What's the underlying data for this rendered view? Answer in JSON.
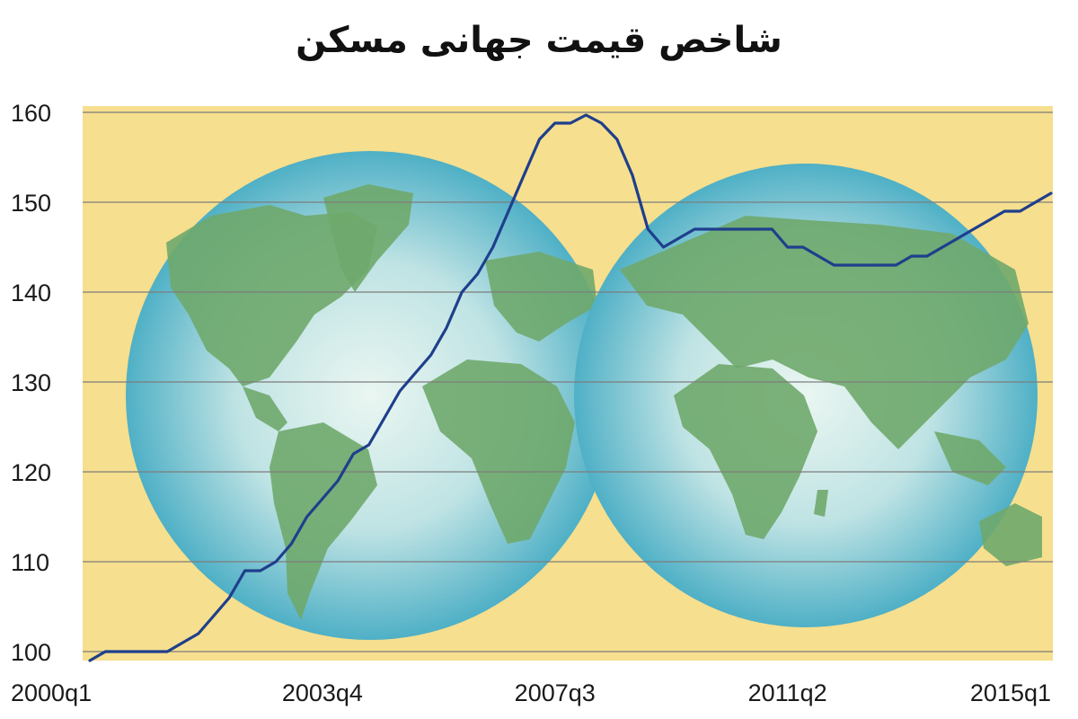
{
  "chart_data": {
    "type": "line",
    "title": "شاخص قیمت جهانی مسکن",
    "xlabel": "",
    "ylabel": "",
    "x_tick_labels": [
      "2000q1",
      "2003q4",
      "2007q3",
      "2011q2",
      "2015q1"
    ],
    "y_ticks": [
      100,
      110,
      120,
      130,
      140,
      150,
      160
    ],
    "ylim": [
      100,
      160
    ],
    "grid": true,
    "legend": "none",
    "x": [
      "2000q1",
      "2000q2",
      "2000q3",
      "2000q4",
      "2001q1",
      "2001q2",
      "2001q3",
      "2001q4",
      "2002q1",
      "2002q2",
      "2002q3",
      "2002q4",
      "2003q1",
      "2003q2",
      "2003q3",
      "2003q4",
      "2004q1",
      "2004q2",
      "2004q3",
      "2004q4",
      "2005q1",
      "2005q2",
      "2005q3",
      "2005q4",
      "2006q1",
      "2006q2",
      "2006q3",
      "2006q4",
      "2007q1",
      "2007q2",
      "2007q3",
      "2007q4",
      "2008q1",
      "2008q2",
      "2008q3",
      "2008q4",
      "2009q1",
      "2009q2",
      "2009q3",
      "2009q4",
      "2010q1",
      "2010q2",
      "2010q3",
      "2010q4",
      "2011q1",
      "2011q2",
      "2011q3",
      "2011q4",
      "2012q1",
      "2012q2",
      "2012q3",
      "2012q4",
      "2013q1",
      "2013q2",
      "2013q3",
      "2013q4",
      "2014q1",
      "2014q2",
      "2014q3",
      "2014q4",
      "2015q1",
      "2015q2",
      "2015q3"
    ],
    "series": [
      {
        "values": [
          99,
          100,
          100,
          100,
          100,
          100,
          101,
          102,
          104,
          106,
          109,
          109,
          110,
          112,
          115,
          117,
          119,
          122,
          123,
          126,
          129,
          131,
          133,
          136,
          140,
          142,
          145,
          149,
          153,
          157,
          158.8,
          158.8,
          159.7,
          158.8,
          157,
          153,
          147,
          145,
          146,
          147,
          147,
          147,
          147,
          147,
          147,
          145,
          145,
          144,
          143,
          143,
          143,
          143,
          143,
          144,
          144,
          145,
          146,
          147,
          148,
          149,
          149,
          150,
          151
        ]
      }
    ],
    "colors": {
      "line": "#1f3f8c",
      "plot_background": "#f6df8e",
      "grid": "#7d7d7d",
      "globe_ocean": "#7ec9d8",
      "globe_land": "#6fa86b"
    }
  }
}
